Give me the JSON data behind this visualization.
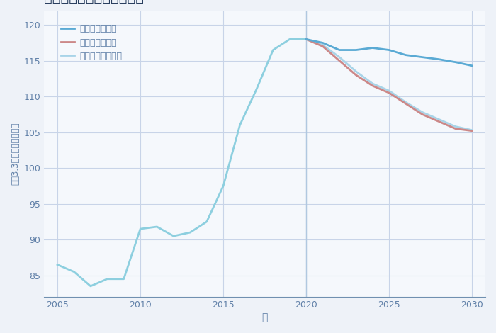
{
  "xlabel": "年",
  "ylabel": "坪（3.3㎡）単価（万円）",
  "bg_color": "#eef2f8",
  "plot_bg_color": "#f5f8fc",
  "grid_color": "#c8d4e8",
  "years_history": [
    2005,
    2006,
    2007,
    2008,
    2009,
    2010,
    2011,
    2012,
    2013,
    2014,
    2015,
    2016,
    2017,
    2018,
    2019,
    2020
  ],
  "values_history": [
    86.5,
    85.5,
    83.5,
    84.5,
    84.5,
    91.5,
    91.8,
    90.5,
    91.0,
    92.5,
    97.5,
    106.0,
    111.0,
    116.5,
    118.0,
    118.0
  ],
  "years_good": [
    2020,
    2021,
    2022,
    2023,
    2024,
    2025,
    2026,
    2027,
    2028,
    2029,
    2030
  ],
  "values_good": [
    118.0,
    117.5,
    116.5,
    116.5,
    116.8,
    116.5,
    115.8,
    115.5,
    115.2,
    114.8,
    114.3
  ],
  "years_bad": [
    2020,
    2021,
    2022,
    2023,
    2024,
    2025,
    2026,
    2027,
    2028,
    2029,
    2030
  ],
  "values_bad": [
    118.0,
    117.0,
    115.0,
    113.0,
    111.5,
    110.5,
    109.0,
    107.5,
    106.5,
    105.5,
    105.2
  ],
  "years_normal": [
    2020,
    2021,
    2022,
    2023,
    2024,
    2025,
    2026,
    2027,
    2028,
    2029,
    2030
  ],
  "values_normal": [
    118.0,
    117.2,
    115.5,
    113.5,
    111.8,
    110.8,
    109.2,
    107.8,
    106.8,
    105.8,
    105.3
  ],
  "color_history": "#8dcfdf",
  "color_good": "#5aaad4",
  "color_bad": "#cc8888",
  "color_normal": "#a8d4e8",
  "ylim": [
    82,
    122
  ],
  "yticks": [
    85,
    90,
    95,
    100,
    105,
    110,
    115,
    120
  ],
  "xticks": [
    2005,
    2010,
    2015,
    2020,
    2025,
    2030
  ],
  "vline_x": 2020,
  "vline_color": "#b0c8e0",
  "legend_labels": [
    "グッドシナリオ",
    "バッドシナリオ",
    "ノーマルシナリオ"
  ],
  "legend_colors": [
    "#5aaad4",
    "#cc8888",
    "#a8d4e8"
  ],
  "title_color": "#2a3f5f",
  "axis_color": "#7090b0",
  "tick_color": "#6080a8"
}
